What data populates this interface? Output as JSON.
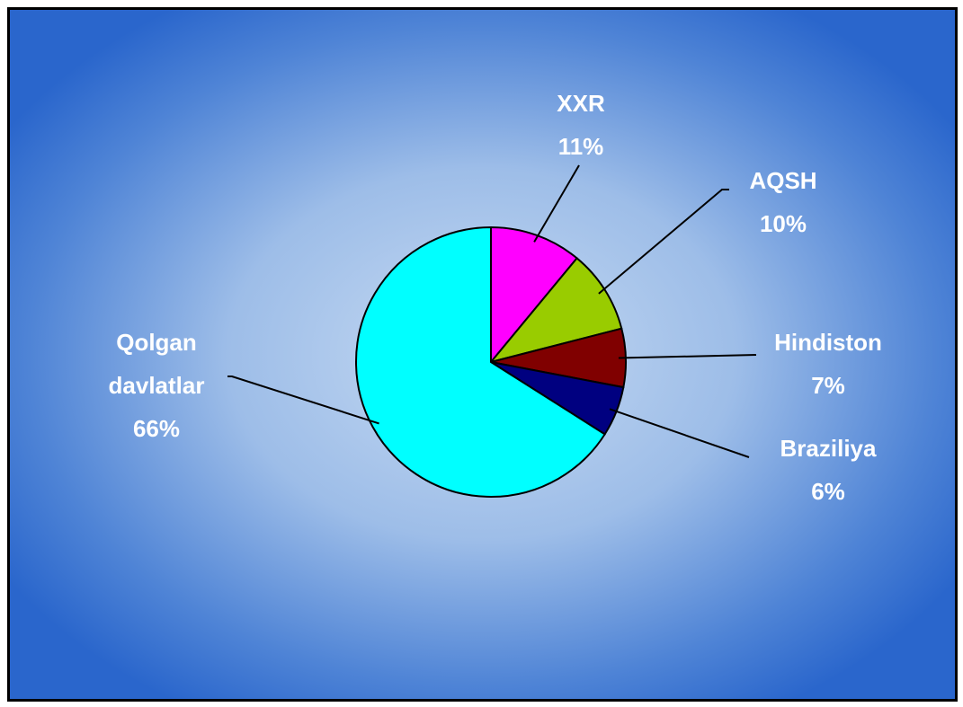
{
  "chart_data": {
    "type": "pie",
    "categories": [
      "XXR",
      "AQSH",
      "Hindiston",
      "Braziliya",
      "Qolgan davlatlar"
    ],
    "values": [
      11,
      10,
      7,
      6,
      66
    ],
    "value_labels": [
      "11%",
      "10%",
      "7%",
      "6%",
      "66%"
    ],
    "colors": [
      "#ff00ff",
      "#99cc00",
      "#800000",
      "#000080",
      "#00ffff"
    ]
  }
}
